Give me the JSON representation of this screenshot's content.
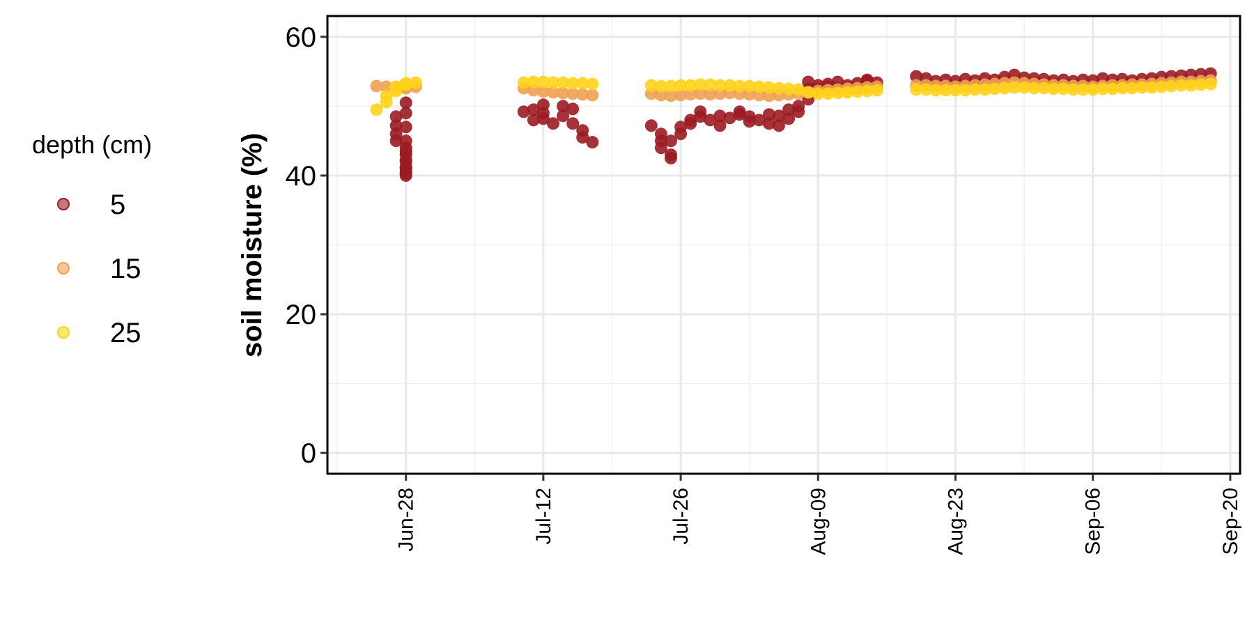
{
  "chart_data": {
    "type": "scatter",
    "title": "",
    "xlabel": "",
    "ylabel": "soil moisture (%)",
    "x_axis": "date",
    "xlim": [
      "2023-06-20",
      "2023-09-21"
    ],
    "ylim": [
      -3,
      63
    ],
    "x_ticks": [
      {
        "date": "2023-06-28",
        "label": "Jun-28"
      },
      {
        "date": "2023-07-12",
        "label": "Jul-12"
      },
      {
        "date": "2023-07-26",
        "label": "Jul-26"
      },
      {
        "date": "2023-08-09",
        "label": "Aug-09"
      },
      {
        "date": "2023-08-23",
        "label": "Aug-23"
      },
      {
        "date": "2023-09-06",
        "label": "Sep-06"
      },
      {
        "date": "2023-09-20",
        "label": "Sep-20"
      }
    ],
    "y_ticks": [
      0,
      20,
      40,
      60
    ],
    "grid": true,
    "legend": {
      "title": "depth (cm)",
      "position": "left"
    },
    "series": [
      {
        "name": "5",
        "color": "#9b1c22",
        "points": [
          [
            "2023-06-27",
            48.5
          ],
          [
            "2023-06-27",
            47.2
          ],
          [
            "2023-06-27",
            46.0
          ],
          [
            "2023-06-27",
            45.0
          ],
          [
            "2023-06-28",
            44.0
          ],
          [
            "2023-06-28",
            43.0
          ],
          [
            "2023-06-28",
            42.0
          ],
          [
            "2023-06-28",
            41.0
          ],
          [
            "2023-06-28",
            40.3
          ],
          [
            "2023-06-28",
            40.0
          ],
          [
            "2023-06-28",
            40.5
          ],
          [
            "2023-06-28",
            41.2
          ],
          [
            "2023-06-28",
            42.2
          ],
          [
            "2023-06-28",
            43.5
          ],
          [
            "2023-06-28",
            45.0
          ],
          [
            "2023-06-28",
            47.0
          ],
          [
            "2023-06-28",
            49.0
          ],
          [
            "2023-06-28",
            50.5
          ],
          [
            "2023-07-10",
            49.2
          ],
          [
            "2023-07-11",
            48.0
          ],
          [
            "2023-07-11",
            49.5
          ],
          [
            "2023-07-12",
            50.2
          ],
          [
            "2023-07-12",
            49.0
          ],
          [
            "2023-07-12",
            48.2
          ],
          [
            "2023-07-13",
            47.5
          ],
          [
            "2023-07-14",
            50.0
          ],
          [
            "2023-07-14",
            48.6
          ],
          [
            "2023-07-15",
            49.6
          ],
          [
            "2023-07-15",
            47.5
          ],
          [
            "2023-07-16",
            46.5
          ],
          [
            "2023-07-16",
            45.5
          ],
          [
            "2023-07-17",
            44.8
          ],
          [
            "2023-07-23",
            47.2
          ],
          [
            "2023-07-24",
            46.0
          ],
          [
            "2023-07-24",
            45.0
          ],
          [
            "2023-07-24",
            44.0
          ],
          [
            "2023-07-25",
            43.0
          ],
          [
            "2023-07-25",
            42.5
          ],
          [
            "2023-07-25",
            45.0
          ],
          [
            "2023-07-26",
            46.0
          ],
          [
            "2023-07-26",
            47.0
          ],
          [
            "2023-07-27",
            48.0
          ],
          [
            "2023-07-27",
            47.5
          ],
          [
            "2023-07-28",
            48.5
          ],
          [
            "2023-07-28",
            49.2
          ],
          [
            "2023-07-29",
            48.0
          ],
          [
            "2023-07-30",
            48.6
          ],
          [
            "2023-07-30",
            47.2
          ],
          [
            "2023-07-31",
            48.3
          ],
          [
            "2023-08-01",
            48.8
          ],
          [
            "2023-08-01",
            49.2
          ],
          [
            "2023-08-02",
            47.8
          ],
          [
            "2023-08-02",
            48.5
          ],
          [
            "2023-08-03",
            48.0
          ],
          [
            "2023-08-04",
            47.5
          ],
          [
            "2023-08-04",
            48.8
          ],
          [
            "2023-08-05",
            47.2
          ],
          [
            "2023-08-05",
            48.6
          ],
          [
            "2023-08-06",
            48.2
          ],
          [
            "2023-08-06",
            49.5
          ],
          [
            "2023-08-07",
            50.0
          ],
          [
            "2023-08-07",
            49.2
          ],
          [
            "2023-08-08",
            51.0
          ],
          [
            "2023-08-08",
            52.5
          ],
          [
            "2023-08-08",
            53.5
          ],
          [
            "2023-08-09",
            53.0
          ],
          [
            "2023-08-09",
            52.5
          ],
          [
            "2023-08-10",
            53.2
          ],
          [
            "2023-08-10",
            52.8
          ],
          [
            "2023-08-11",
            53.5
          ],
          [
            "2023-08-11",
            52.6
          ],
          [
            "2023-08-12",
            53.0
          ],
          [
            "2023-08-13",
            53.3
          ],
          [
            "2023-08-13",
            52.7
          ],
          [
            "2023-08-14",
            53.6
          ],
          [
            "2023-08-14",
            53.8
          ],
          [
            "2023-08-15",
            53.4
          ],
          [
            "2023-08-19",
            54.3
          ],
          [
            "2023-08-20",
            54.0
          ],
          [
            "2023-08-21",
            53.6
          ],
          [
            "2023-08-22",
            53.8
          ],
          [
            "2023-08-23",
            53.6
          ],
          [
            "2023-08-24",
            53.9
          ],
          [
            "2023-08-25",
            53.7
          ],
          [
            "2023-08-26",
            54.0
          ],
          [
            "2023-08-27",
            53.8
          ],
          [
            "2023-08-28",
            54.2
          ],
          [
            "2023-08-29",
            54.5
          ],
          [
            "2023-08-30",
            54.1
          ],
          [
            "2023-08-31",
            54.0
          ],
          [
            "2023-09-01",
            53.9
          ],
          [
            "2023-09-02",
            53.7
          ],
          [
            "2023-09-03",
            53.8
          ],
          [
            "2023-09-04",
            53.6
          ],
          [
            "2023-09-05",
            53.8
          ],
          [
            "2023-09-06",
            53.7
          ],
          [
            "2023-09-07",
            54.0
          ],
          [
            "2023-09-08",
            53.8
          ],
          [
            "2023-09-09",
            53.9
          ],
          [
            "2023-09-10",
            53.7
          ],
          [
            "2023-09-11",
            53.9
          ],
          [
            "2023-09-12",
            54.0
          ],
          [
            "2023-09-13",
            54.2
          ],
          [
            "2023-09-14",
            54.3
          ],
          [
            "2023-09-15",
            54.4
          ],
          [
            "2023-09-16",
            54.5
          ],
          [
            "2023-09-17",
            54.6
          ],
          [
            "2023-09-18",
            54.7
          ]
        ]
      },
      {
        "name": "15",
        "color": "#eea152",
        "points": [
          [
            "2023-06-25",
            52.9
          ],
          [
            "2023-06-26",
            52.8
          ],
          [
            "2023-06-27",
            52.7
          ],
          [
            "2023-06-27",
            52.6
          ],
          [
            "2023-06-28",
            52.6
          ],
          [
            "2023-06-28",
            52.7
          ],
          [
            "2023-06-29",
            52.8
          ],
          [
            "2023-07-10",
            52.6
          ],
          [
            "2023-07-11",
            52.3
          ],
          [
            "2023-07-12",
            52.1
          ],
          [
            "2023-07-13",
            52.0
          ],
          [
            "2023-07-14",
            51.9
          ],
          [
            "2023-07-15",
            51.8
          ],
          [
            "2023-07-16",
            51.7
          ],
          [
            "2023-07-17",
            51.6
          ],
          [
            "2023-07-23",
            51.8
          ],
          [
            "2023-07-24",
            51.6
          ],
          [
            "2023-07-25",
            51.5
          ],
          [
            "2023-07-26",
            51.6
          ],
          [
            "2023-07-27",
            51.7
          ],
          [
            "2023-07-28",
            51.8
          ],
          [
            "2023-07-29",
            51.7
          ],
          [
            "2023-07-30",
            51.8
          ],
          [
            "2023-07-31",
            51.9
          ],
          [
            "2023-08-01",
            51.8
          ],
          [
            "2023-08-02",
            51.7
          ],
          [
            "2023-08-03",
            51.6
          ],
          [
            "2023-08-04",
            51.5
          ],
          [
            "2023-08-05",
            51.6
          ],
          [
            "2023-08-06",
            51.7
          ],
          [
            "2023-08-07",
            51.8
          ],
          [
            "2023-08-08",
            52.0
          ],
          [
            "2023-08-09",
            52.2
          ],
          [
            "2023-08-10",
            52.3
          ],
          [
            "2023-08-11",
            52.4
          ],
          [
            "2023-08-12",
            52.5
          ],
          [
            "2023-08-13",
            52.6
          ],
          [
            "2023-08-14",
            52.7
          ],
          [
            "2023-08-15",
            52.8
          ],
          [
            "2023-08-19",
            53.0
          ],
          [
            "2023-08-20",
            53.0
          ],
          [
            "2023-08-21",
            52.9
          ],
          [
            "2023-08-22",
            52.9
          ],
          [
            "2023-08-23",
            52.8
          ],
          [
            "2023-08-24",
            52.9
          ],
          [
            "2023-08-25",
            53.0
          ],
          [
            "2023-08-26",
            53.1
          ],
          [
            "2023-08-27",
            53.2
          ],
          [
            "2023-08-28",
            53.3
          ],
          [
            "2023-08-29",
            53.4
          ],
          [
            "2023-08-30",
            53.3
          ],
          [
            "2023-08-31",
            53.2
          ],
          [
            "2023-09-01",
            53.1
          ],
          [
            "2023-09-02",
            53.0
          ],
          [
            "2023-09-03",
            53.0
          ],
          [
            "2023-09-04",
            52.9
          ],
          [
            "2023-09-05",
            52.9
          ],
          [
            "2023-09-06",
            52.8
          ],
          [
            "2023-09-07",
            52.9
          ],
          [
            "2023-09-08",
            53.0
          ],
          [
            "2023-09-09",
            53.0
          ],
          [
            "2023-09-10",
            53.1
          ],
          [
            "2023-09-11",
            53.1
          ],
          [
            "2023-09-12",
            53.2
          ],
          [
            "2023-09-13",
            53.3
          ],
          [
            "2023-09-14",
            53.4
          ],
          [
            "2023-09-15",
            53.5
          ],
          [
            "2023-09-16",
            53.5
          ],
          [
            "2023-09-17",
            53.6
          ],
          [
            "2023-09-18",
            53.7
          ]
        ]
      },
      {
        "name": "25",
        "color": "#ffd319",
        "points": [
          [
            "2023-06-25",
            49.5
          ],
          [
            "2023-06-26",
            50.6
          ],
          [
            "2023-06-26",
            51.5
          ],
          [
            "2023-06-27",
            52.2
          ],
          [
            "2023-06-27",
            52.8
          ],
          [
            "2023-06-28",
            53.1
          ],
          [
            "2023-06-28",
            53.3
          ],
          [
            "2023-06-29",
            53.4
          ],
          [
            "2023-07-10",
            53.4
          ],
          [
            "2023-07-11",
            53.5
          ],
          [
            "2023-07-12",
            53.5
          ],
          [
            "2023-07-13",
            53.4
          ],
          [
            "2023-07-14",
            53.4
          ],
          [
            "2023-07-15",
            53.3
          ],
          [
            "2023-07-16",
            53.3
          ],
          [
            "2023-07-17",
            53.2
          ],
          [
            "2023-07-23",
            53.0
          ],
          [
            "2023-07-24",
            52.9
          ],
          [
            "2023-07-25",
            52.9
          ],
          [
            "2023-07-26",
            53.0
          ],
          [
            "2023-07-27",
            53.0
          ],
          [
            "2023-07-28",
            53.1
          ],
          [
            "2023-07-29",
            53.1
          ],
          [
            "2023-07-30",
            53.0
          ],
          [
            "2023-07-31",
            53.0
          ],
          [
            "2023-08-01",
            52.9
          ],
          [
            "2023-08-02",
            52.9
          ],
          [
            "2023-08-03",
            52.8
          ],
          [
            "2023-08-04",
            52.7
          ],
          [
            "2023-08-05",
            52.6
          ],
          [
            "2023-08-06",
            52.5
          ],
          [
            "2023-08-07",
            52.4
          ],
          [
            "2023-08-08",
            52.0
          ],
          [
            "2023-08-09",
            51.8
          ],
          [
            "2023-08-10",
            51.8
          ],
          [
            "2023-08-11",
            51.9
          ],
          [
            "2023-08-12",
            52.0
          ],
          [
            "2023-08-13",
            52.1
          ],
          [
            "2023-08-14",
            52.2
          ],
          [
            "2023-08-15",
            52.3
          ],
          [
            "2023-08-19",
            52.4
          ],
          [
            "2023-08-20",
            52.4
          ],
          [
            "2023-08-21",
            52.3
          ],
          [
            "2023-08-22",
            52.3
          ],
          [
            "2023-08-23",
            52.3
          ],
          [
            "2023-08-24",
            52.3
          ],
          [
            "2023-08-25",
            52.4
          ],
          [
            "2023-08-26",
            52.4
          ],
          [
            "2023-08-27",
            52.5
          ],
          [
            "2023-08-28",
            52.6
          ],
          [
            "2023-08-29",
            52.7
          ],
          [
            "2023-08-30",
            52.7
          ],
          [
            "2023-08-31",
            52.6
          ],
          [
            "2023-09-01",
            52.6
          ],
          [
            "2023-09-02",
            52.5
          ],
          [
            "2023-09-03",
            52.5
          ],
          [
            "2023-09-04",
            52.4
          ],
          [
            "2023-09-05",
            52.4
          ],
          [
            "2023-09-06",
            52.4
          ],
          [
            "2023-09-07",
            52.5
          ],
          [
            "2023-09-08",
            52.5
          ],
          [
            "2023-09-09",
            52.6
          ],
          [
            "2023-09-10",
            52.6
          ],
          [
            "2023-09-11",
            52.7
          ],
          [
            "2023-09-12",
            52.7
          ],
          [
            "2023-09-13",
            52.8
          ],
          [
            "2023-09-14",
            52.9
          ],
          [
            "2023-09-15",
            53.0
          ],
          [
            "2023-09-16",
            53.0
          ],
          [
            "2023-09-17",
            53.1
          ],
          [
            "2023-09-18",
            53.2
          ]
        ]
      }
    ]
  }
}
